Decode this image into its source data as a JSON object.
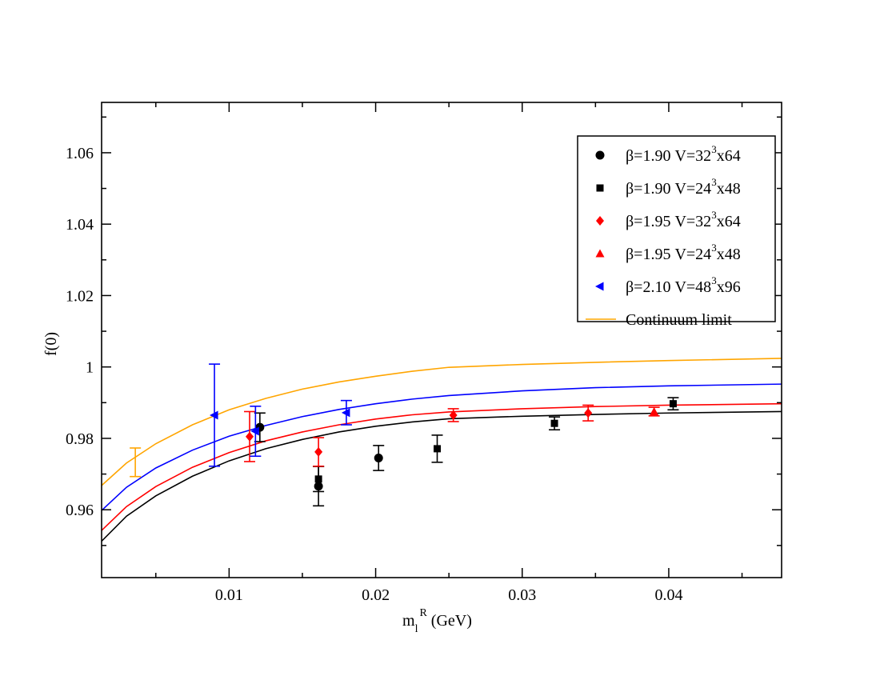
{
  "chart_data": {
    "type": "scatter",
    "title": "",
    "xlabel": {
      "main": "m",
      "sub": "l",
      "sup": "R",
      "unit": " (GeV)"
    },
    "ylabel": "f(0)",
    "xlim": [
      0.0013,
      0.0477
    ],
    "ylim": [
      0.941,
      1.0741
    ],
    "xticks": [
      0.01,
      0.02,
      0.03,
      0.04
    ],
    "xtick_labels": [
      "0.01",
      "0.02",
      "0.03",
      "0.04"
    ],
    "yticks": [
      0.96,
      0.98,
      1.0,
      1.02,
      1.04,
      1.06
    ],
    "ytick_labels": [
      "0.96",
      "0.98",
      "1",
      "1.02",
      "1.04",
      "1.06"
    ],
    "grid": false,
    "legend_position": "top-right",
    "series": [
      {
        "name": "β=1.90  V=32³x64",
        "label": {
          "prefix": "β=1.90  V=32",
          "sup": "3",
          "suffix": "x64"
        },
        "marker": "circle",
        "color": "#000000",
        "points": [
          {
            "x": 0.0121,
            "y": 0.9831,
            "err": 0.004
          },
          {
            "x": 0.0161,
            "y": 0.9666,
            "err": 0.0055
          },
          {
            "x": 0.0202,
            "y": 0.9745,
            "err": 0.0035
          }
        ]
      },
      {
        "name": "β=1.90  V=24³x48",
        "label": {
          "prefix": "β=1.90  V=24",
          "sup": "3",
          "suffix": "x48"
        },
        "marker": "square",
        "color": "#000000",
        "points": [
          {
            "x": 0.0161,
            "y": 0.9686,
            "err": 0.0035
          },
          {
            "x": 0.0242,
            "y": 0.9771,
            "err": 0.0038
          },
          {
            "x": 0.0322,
            "y": 0.9842,
            "err": 0.0018
          },
          {
            "x": 0.0403,
            "y": 0.9897,
            "err": 0.0017
          }
        ]
      },
      {
        "name": "β=1.95  V=32³x64",
        "label": {
          "prefix": "β=1.95  V=32",
          "sup": "3",
          "suffix": "x64"
        },
        "marker": "diamond",
        "color": "#ff0000",
        "points": [
          {
            "x": 0.0114,
            "y": 0.9805,
            "err": 0.007
          },
          {
            "x": 0.0161,
            "y": 0.9762,
            "err": 0.004
          },
          {
            "x": 0.0253,
            "y": 0.9865,
            "err": 0.0018
          },
          {
            "x": 0.0345,
            "y": 0.9871,
            "err": 0.0022
          }
        ]
      },
      {
        "name": "β=1.95  V=24³x48",
        "label": {
          "prefix": "β=1.95  V=24",
          "sup": "3",
          "suffix": "x48"
        },
        "marker": "triangle-up",
        "color": "#ff0000",
        "points": [
          {
            "x": 0.039,
            "y": 0.9875,
            "err": 0.0012
          }
        ]
      },
      {
        "name": "β=2.10  V=48³x96",
        "label": {
          "prefix": "β=2.10  V=48",
          "sup": "3",
          "suffix": "x96"
        },
        "marker": "triangle-left",
        "color": "#0000ff",
        "points": [
          {
            "x": 0.009,
            "y": 0.9865,
            "err": 0.0143
          },
          {
            "x": 0.0118,
            "y": 0.982,
            "err": 0.007
          },
          {
            "x": 0.018,
            "y": 0.9872,
            "err": 0.0034
          }
        ]
      }
    ],
    "curves": [
      {
        "name": "Continuum limit",
        "color": "#ffa500",
        "points": [
          [
            0.0013,
            0.9668
          ],
          [
            0.003,
            0.9731
          ],
          [
            0.005,
            0.9785
          ],
          [
            0.0075,
            0.9838
          ],
          [
            0.01,
            0.988
          ],
          [
            0.0125,
            0.9912
          ],
          [
            0.015,
            0.9938
          ],
          [
            0.0175,
            0.9958
          ],
          [
            0.02,
            0.9974
          ],
          [
            0.0225,
            0.9988
          ],
          [
            0.025,
            0.9999
          ],
          [
            0.03,
            1.0007
          ],
          [
            0.035,
            1.0013
          ],
          [
            0.04,
            1.0018
          ],
          [
            0.0477,
            1.0024
          ]
        ]
      },
      {
        "name": "",
        "color": "#0000ff",
        "points": [
          [
            0.0013,
            0.9598
          ],
          [
            0.003,
            0.9663
          ],
          [
            0.005,
            0.9717
          ],
          [
            0.0075,
            0.9767
          ],
          [
            0.01,
            0.9806
          ],
          [
            0.0125,
            0.9836
          ],
          [
            0.015,
            0.9861
          ],
          [
            0.0175,
            0.9881
          ],
          [
            0.02,
            0.9897
          ],
          [
            0.0225,
            0.991
          ],
          [
            0.025,
            0.992
          ],
          [
            0.03,
            0.9933
          ],
          [
            0.035,
            0.9942
          ],
          [
            0.04,
            0.9947
          ],
          [
            0.0477,
            0.9952
          ]
        ]
      },
      {
        "name": "",
        "color": "#ff0000",
        "points": [
          [
            0.0013,
            0.9542
          ],
          [
            0.003,
            0.9609
          ],
          [
            0.005,
            0.9665
          ],
          [
            0.0075,
            0.9719
          ],
          [
            0.01,
            0.976
          ],
          [
            0.0125,
            0.9793
          ],
          [
            0.015,
            0.9818
          ],
          [
            0.0175,
            0.9838
          ],
          [
            0.02,
            0.9854
          ],
          [
            0.0225,
            0.9866
          ],
          [
            0.025,
            0.9874
          ],
          [
            0.03,
            0.9883
          ],
          [
            0.035,
            0.9889
          ],
          [
            0.04,
            0.9893
          ],
          [
            0.0477,
            0.9897
          ]
        ]
      },
      {
        "name": "",
        "color": "#000000",
        "points": [
          [
            0.0013,
            0.9512
          ],
          [
            0.003,
            0.9582
          ],
          [
            0.005,
            0.9639
          ],
          [
            0.0075,
            0.9694
          ],
          [
            0.01,
            0.9737
          ],
          [
            0.0125,
            0.9771
          ],
          [
            0.015,
            0.9797
          ],
          [
            0.0175,
            0.9818
          ],
          [
            0.02,
            0.9834
          ],
          [
            0.0225,
            0.9846
          ],
          [
            0.025,
            0.9855
          ],
          [
            0.03,
            0.9862
          ],
          [
            0.035,
            0.9867
          ],
          [
            0.04,
            0.9871
          ],
          [
            0.0477,
            0.9875
          ]
        ]
      }
    ],
    "continuum_point": {
      "x": 0.0036,
      "y": 0.9733,
      "err": 0.004,
      "color": "#ffa500"
    },
    "legend": [
      {
        "series": 0
      },
      {
        "series": 1
      },
      {
        "series": 2
      },
      {
        "series": 3
      },
      {
        "series": 4
      },
      {
        "curve": 0
      }
    ]
  }
}
